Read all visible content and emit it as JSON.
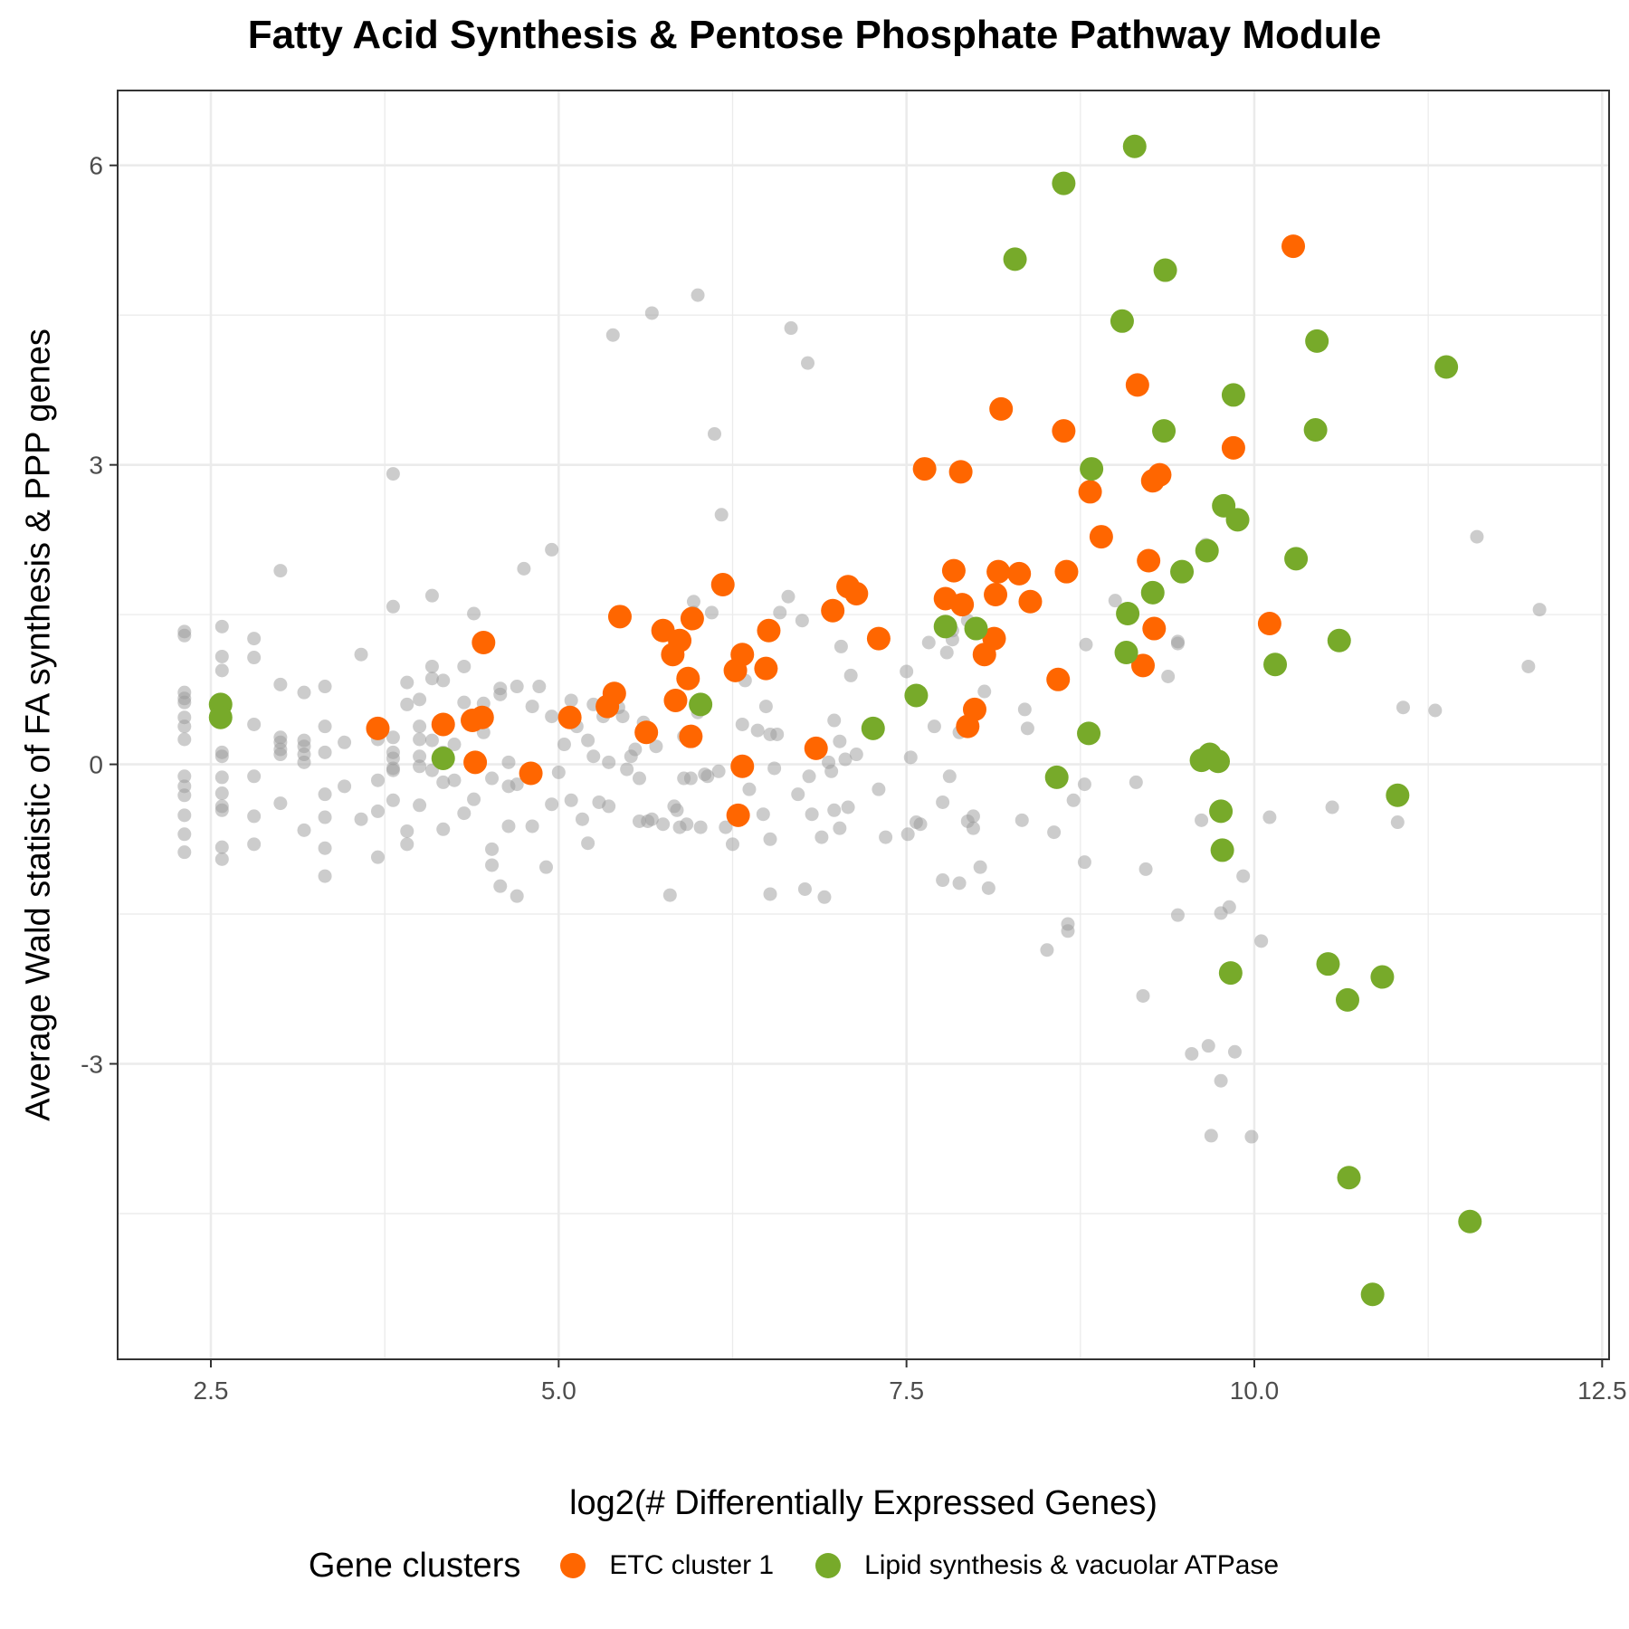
{
  "chart_data": {
    "type": "scatter",
    "title": "Fatty Acid Synthesis & Pentose Phosphate Pathway Module",
    "xlabel": "log2(# Differentially Expressed Genes)",
    "ylabel": "Average Wald statistic of FA synthesis & PPP genes",
    "xlim": [
      1.83,
      12.55
    ],
    "ylim": [
      -5.96,
      6.75
    ],
    "x_ticks": [
      2.5,
      5.0,
      7.5,
      10.0,
      12.5
    ],
    "x_tick_labels": [
      "2.5",
      "5.0",
      "7.5",
      "10.0",
      "12.5"
    ],
    "y_ticks": [
      -3,
      0,
      3,
      6
    ],
    "y_tick_labels": [
      "-3",
      "0",
      "3",
      "6"
    ],
    "grid": true,
    "legend": {
      "title": "Gene clusters",
      "position": "bottom",
      "entries": [
        "ETC cluster 1",
        "Lipid synthesis & vacuolar ATPase"
      ]
    },
    "colors": {
      "background_points": "#999999",
      "ETC cluster 1": "#FF6600",
      "Lipid synthesis & vacuolar ATPase": "#77AA2A",
      "grid": "#EBEBEB",
      "panel_border": "#333333"
    },
    "series": [
      {
        "name": "ETC cluster 1",
        "points": [
          [
            3.7,
            0.36
          ],
          [
            4.17,
            0.4
          ],
          [
            4.38,
            0.44
          ],
          [
            4.45,
            0.47
          ],
          [
            4.46,
            1.22
          ],
          [
            4.4,
            0.02
          ],
          [
            4.8,
            -0.09
          ],
          [
            5.08,
            0.47
          ],
          [
            5.35,
            0.58
          ],
          [
            5.4,
            0.71
          ],
          [
            5.44,
            1.48
          ],
          [
            5.63,
            0.32
          ],
          [
            5.75,
            1.34
          ],
          [
            5.82,
            1.1
          ],
          [
            5.87,
            1.24
          ],
          [
            5.84,
            0.64
          ],
          [
            5.93,
            0.86
          ],
          [
            5.96,
            1.46
          ],
          [
            5.95,
            0.28
          ],
          [
            6.18,
            1.8
          ],
          [
            6.27,
            0.94
          ],
          [
            6.32,
            1.1
          ],
          [
            6.32,
            -0.02
          ],
          [
            6.29,
            -0.51
          ],
          [
            6.49,
            0.96
          ],
          [
            6.51,
            1.34
          ],
          [
            6.85,
            0.16
          ],
          [
            6.97,
            1.54
          ],
          [
            7.08,
            1.78
          ],
          [
            7.14,
            1.71
          ],
          [
            7.3,
            1.26
          ],
          [
            7.63,
            2.96
          ],
          [
            7.78,
            1.66
          ],
          [
            7.84,
            1.94
          ],
          [
            7.9,
            1.6
          ],
          [
            7.89,
            2.93
          ],
          [
            7.94,
            0.38
          ],
          [
            7.99,
            0.55
          ],
          [
            8.06,
            1.1
          ],
          [
            8.13,
            1.26
          ],
          [
            8.14,
            1.7
          ],
          [
            8.16,
            1.93
          ],
          [
            8.18,
            3.56
          ],
          [
            8.31,
            1.91
          ],
          [
            8.39,
            1.63
          ],
          [
            8.59,
            0.85
          ],
          [
            8.63,
            3.34
          ],
          [
            8.65,
            1.93
          ],
          [
            8.82,
            2.73
          ],
          [
            8.9,
            2.28
          ],
          [
            9.16,
            3.8
          ],
          [
            9.2,
            0.99
          ],
          [
            9.24,
            2.04
          ],
          [
            9.27,
            2.84
          ],
          [
            9.28,
            1.36
          ],
          [
            9.32,
            2.9
          ],
          [
            9.85,
            3.17
          ],
          [
            10.11,
            1.41
          ],
          [
            10.28,
            5.19
          ]
        ]
      },
      {
        "name": "Lipid synthesis & vacuolar ATPase",
        "points": [
          [
            2.57,
            0.6
          ],
          [
            2.57,
            0.47
          ],
          [
            4.17,
            0.06
          ],
          [
            6.02,
            0.6
          ],
          [
            7.26,
            0.36
          ],
          [
            7.57,
            0.69
          ],
          [
            7.78,
            1.38
          ],
          [
            8.0,
            1.36
          ],
          [
            8.28,
            5.06
          ],
          [
            8.58,
            -0.13
          ],
          [
            8.63,
            5.82
          ],
          [
            8.81,
            0.31
          ],
          [
            8.83,
            2.96
          ],
          [
            9.05,
            4.44
          ],
          [
            9.08,
            1.12
          ],
          [
            9.09,
            1.51
          ],
          [
            9.14,
            6.19
          ],
          [
            9.27,
            1.72
          ],
          [
            9.35,
            3.34
          ],
          [
            9.36,
            4.95
          ],
          [
            9.48,
            1.93
          ],
          [
            9.62,
            0.04
          ],
          [
            9.66,
            2.14
          ],
          [
            9.68,
            0.1
          ],
          [
            9.74,
            0.03
          ],
          [
            9.76,
            -0.47
          ],
          [
            9.77,
            -0.86
          ],
          [
            9.78,
            2.59
          ],
          [
            9.83,
            -2.09
          ],
          [
            9.85,
            3.7
          ],
          [
            9.88,
            2.45
          ],
          [
            10.15,
            1.0
          ],
          [
            10.3,
            2.06
          ],
          [
            10.44,
            3.35
          ],
          [
            10.45,
            4.24
          ],
          [
            10.53,
            -2.0
          ],
          [
            10.61,
            1.24
          ],
          [
            10.67,
            -2.36
          ],
          [
            10.68,
            -4.14
          ],
          [
            10.85,
            -5.31
          ],
          [
            10.92,
            -2.13
          ],
          [
            11.03,
            -0.31
          ],
          [
            11.38,
            3.98
          ],
          [
            11.55,
            -4.58
          ]
        ]
      }
    ],
    "background_points": [
      [
        2.31,
        1.33
      ],
      [
        2.31,
        1.29
      ],
      [
        2.31,
        0.72
      ],
      [
        2.31,
        0.66
      ],
      [
        2.31,
        0.62
      ],
      [
        2.31,
        0.47
      ],
      [
        2.31,
        0.38
      ],
      [
        2.31,
        0.25
      ],
      [
        2.31,
        -0.12
      ],
      [
        2.31,
        -0.22
      ],
      [
        2.31,
        -0.31
      ],
      [
        2.31,
        -0.51
      ],
      [
        2.31,
        -0.7
      ],
      [
        2.31,
        -0.88
      ],
      [
        2.58,
        1.38
      ],
      [
        2.58,
        1.08
      ],
      [
        2.58,
        0.94
      ],
      [
        2.58,
        0.12
      ],
      [
        2.58,
        0.08
      ],
      [
        2.58,
        -0.13
      ],
      [
        2.58,
        -0.29
      ],
      [
        2.58,
        -0.42
      ],
      [
        2.58,
        -0.46
      ],
      [
        2.58,
        -0.83
      ],
      [
        2.58,
        -0.95
      ],
      [
        2.81,
        1.26
      ],
      [
        2.81,
        1.07
      ],
      [
        2.81,
        0.4
      ],
      [
        2.81,
        -0.12
      ],
      [
        2.81,
        -0.52
      ],
      [
        2.81,
        -0.8
      ],
      [
        3.0,
        1.94
      ],
      [
        3.0,
        0.8
      ],
      [
        3.0,
        0.27
      ],
      [
        3.0,
        0.22
      ],
      [
        3.0,
        0.15
      ],
      [
        3.0,
        0.1
      ],
      [
        3.0,
        -0.39
      ],
      [
        3.17,
        0.72
      ],
      [
        3.17,
        0.24
      ],
      [
        3.17,
        0.18
      ],
      [
        3.17,
        0.1
      ],
      [
        3.17,
        0.02
      ],
      [
        3.17,
        -0.66
      ],
      [
        3.32,
        0.78
      ],
      [
        3.32,
        0.38
      ],
      [
        3.32,
        0.12
      ],
      [
        3.32,
        -0.3
      ],
      [
        3.32,
        -0.53
      ],
      [
        3.32,
        -0.84
      ],
      [
        3.32,
        -1.12
      ],
      [
        3.46,
        0.22
      ],
      [
        3.46,
        -0.22
      ],
      [
        3.58,
        1.1
      ],
      [
        3.58,
        -0.55
      ],
      [
        3.7,
        0.25
      ],
      [
        3.7,
        -0.16
      ],
      [
        3.7,
        -0.47
      ],
      [
        3.7,
        -0.93
      ],
      [
        3.81,
        2.91
      ],
      [
        3.81,
        1.58
      ],
      [
        3.81,
        0.27
      ],
      [
        3.81,
        0.12
      ],
      [
        3.81,
        0.06
      ],
      [
        3.81,
        -0.04
      ],
      [
        3.81,
        -0.06
      ],
      [
        3.81,
        -0.36
      ],
      [
        3.91,
        0.82
      ],
      [
        3.91,
        0.6
      ],
      [
        3.91,
        -0.67
      ],
      [
        3.91,
        -0.8
      ],
      [
        4.0,
        0.65
      ],
      [
        4.0,
        0.38
      ],
      [
        4.0,
        0.25
      ],
      [
        4.0,
        0.08
      ],
      [
        4.0,
        -0.02
      ],
      [
        4.0,
        -0.41
      ],
      [
        4.09,
        1.69
      ],
      [
        4.09,
        0.98
      ],
      [
        4.09,
        0.86
      ],
      [
        4.09,
        0.24
      ],
      [
        4.09,
        -0.06
      ],
      [
        4.17,
        0.84
      ],
      [
        4.17,
        0.12
      ],
      [
        4.17,
        -0.18
      ],
      [
        4.17,
        -0.65
      ],
      [
        4.25,
        0.2
      ],
      [
        4.25,
        -0.16
      ],
      [
        4.32,
        0.98
      ],
      [
        4.32,
        0.62
      ],
      [
        4.32,
        -0.49
      ],
      [
        4.39,
        1.51
      ],
      [
        4.39,
        -0.35
      ],
      [
        4.46,
        0.61
      ],
      [
        4.46,
        0.32
      ],
      [
        4.52,
        -0.85
      ],
      [
        4.52,
        -1.01
      ],
      [
        4.52,
        -0.14
      ],
      [
        4.58,
        0.76
      ],
      [
        4.58,
        0.7
      ],
      [
        4.58,
        -1.22
      ],
      [
        4.64,
        -0.22
      ],
      [
        4.64,
        -0.62
      ],
      [
        4.64,
        0.02
      ],
      [
        4.7,
        0.78
      ],
      [
        4.7,
        -0.2
      ],
      [
        4.7,
        -1.32
      ],
      [
        4.75,
        1.96
      ],
      [
        4.81,
        0.58
      ],
      [
        4.81,
        -0.62
      ],
      [
        4.86,
        0.78
      ],
      [
        4.91,
        -1.03
      ],
      [
        4.95,
        2.15
      ],
      [
        4.95,
        0.48
      ],
      [
        4.95,
        -0.4
      ],
      [
        5.0,
        -0.08
      ],
      [
        5.04,
        0.2
      ],
      [
        5.09,
        0.64
      ],
      [
        5.09,
        -0.36
      ],
      [
        5.13,
        0.38
      ],
      [
        5.17,
        -0.55
      ],
      [
        5.21,
        0.24
      ],
      [
        5.21,
        -0.79
      ],
      [
        5.25,
        0.6
      ],
      [
        5.25,
        0.08
      ],
      [
        5.29,
        -0.38
      ],
      [
        5.32,
        0.48
      ],
      [
        5.36,
        -0.42
      ],
      [
        5.36,
        0.02
      ],
      [
        5.39,
        4.3
      ],
      [
        5.43,
        0.57
      ],
      [
        5.46,
        0.48
      ],
      [
        5.49,
        -0.05
      ],
      [
        5.52,
        0.08
      ],
      [
        5.55,
        0.15
      ],
      [
        5.58,
        -0.57
      ],
      [
        5.58,
        -0.14
      ],
      [
        5.61,
        0.42
      ],
      [
        5.64,
        -0.57
      ],
      [
        5.67,
        4.52
      ],
      [
        5.67,
        -0.55
      ],
      [
        5.7,
        0.18
      ],
      [
        5.75,
        -0.6
      ],
      [
        5.8,
        -1.31
      ],
      [
        5.83,
        -0.42
      ],
      [
        5.85,
        -0.46
      ],
      [
        5.87,
        -0.63
      ],
      [
        5.9,
        0.28
      ],
      [
        5.9,
        -0.14
      ],
      [
        5.92,
        -0.6
      ],
      [
        5.95,
        -0.14
      ],
      [
        5.97,
        1.52
      ],
      [
        5.97,
        1.63
      ],
      [
        6.0,
        4.7
      ],
      [
        6.0,
        0.52
      ],
      [
        6.02,
        -0.63
      ],
      [
        6.05,
        -0.1
      ],
      [
        6.07,
        -0.12
      ],
      [
        6.1,
        1.52
      ],
      [
        6.12,
        3.31
      ],
      [
        6.15,
        -0.07
      ],
      [
        6.17,
        2.5
      ],
      [
        6.2,
        -0.63
      ],
      [
        6.25,
        -0.8
      ],
      [
        6.29,
        1.12
      ],
      [
        6.32,
        0.4
      ],
      [
        6.34,
        0.84
      ],
      [
        6.37,
        -0.25
      ],
      [
        6.43,
        0.34
      ],
      [
        6.47,
        -0.5
      ],
      [
        6.49,
        0.58
      ],
      [
        6.52,
        0.3
      ],
      [
        6.52,
        -0.75
      ],
      [
        6.52,
        -1.3
      ],
      [
        6.55,
        -0.04
      ],
      [
        6.57,
        0.3
      ],
      [
        6.59,
        1.52
      ],
      [
        6.65,
        1.68
      ],
      [
        6.67,
        4.37
      ],
      [
        6.72,
        -0.3
      ],
      [
        6.75,
        1.44
      ],
      [
        6.77,
        -1.25
      ],
      [
        6.79,
        4.02
      ],
      [
        6.8,
        -0.12
      ],
      [
        6.82,
        -0.5
      ],
      [
        6.89,
        -0.73
      ],
      [
        6.91,
        -1.33
      ],
      [
        6.94,
        0.02
      ],
      [
        6.96,
        -0.07
      ],
      [
        6.98,
        0.44
      ],
      [
        6.98,
        -0.46
      ],
      [
        7.02,
        0.23
      ],
      [
        7.02,
        -0.64
      ],
      [
        7.03,
        1.18
      ],
      [
        7.06,
        0.05
      ],
      [
        7.08,
        -0.43
      ],
      [
        7.1,
        0.89
      ],
      [
        7.14,
        0.1
      ],
      [
        7.3,
        -0.25
      ],
      [
        7.35,
        -0.73
      ],
      [
        7.5,
        0.93
      ],
      [
        7.51,
        -0.7
      ],
      [
        7.53,
        0.07
      ],
      [
        7.57,
        -0.58
      ],
      [
        7.6,
        -0.6
      ],
      [
        7.66,
        1.22
      ],
      [
        7.7,
        0.38
      ],
      [
        7.76,
        -0.38
      ],
      [
        7.76,
        -1.16
      ],
      [
        7.79,
        1.12
      ],
      [
        7.81,
        -0.12
      ],
      [
        7.83,
        1.34
      ],
      [
        7.83,
        1.25
      ],
      [
        7.88,
        0.32
      ],
      [
        7.88,
        -1.19
      ],
      [
        7.94,
        -0.57
      ],
      [
        7.94,
        1.44
      ],
      [
        7.98,
        -0.52
      ],
      [
        7.98,
        -0.64
      ],
      [
        8.03,
        -1.03
      ],
      [
        8.06,
        0.73
      ],
      [
        8.09,
        -1.24
      ],
      [
        8.33,
        -0.56
      ],
      [
        8.35,
        0.55
      ],
      [
        8.37,
        0.36
      ],
      [
        8.51,
        -1.86
      ],
      [
        8.56,
        -0.68
      ],
      [
        8.66,
        -1.6
      ],
      [
        8.66,
        -1.67
      ],
      [
        8.7,
        -0.36
      ],
      [
        8.78,
        -0.2
      ],
      [
        8.78,
        -0.98
      ],
      [
        8.79,
        1.2
      ],
      [
        9.0,
        1.64
      ],
      [
        9.15,
        -0.18
      ],
      [
        9.2,
        -2.32
      ],
      [
        9.22,
        -1.05
      ],
      [
        9.38,
        0.88
      ],
      [
        9.45,
        1.23
      ],
      [
        9.45,
        1.21
      ],
      [
        9.45,
        -1.51
      ],
      [
        9.55,
        -2.9
      ],
      [
        9.62,
        -0.56
      ],
      [
        9.65,
        2.2
      ],
      [
        9.67,
        -2.82
      ],
      [
        9.69,
        -3.72
      ],
      [
        9.76,
        -3.17
      ],
      [
        9.76,
        -1.49
      ],
      [
        9.82,
        -1.43
      ],
      [
        9.86,
        -2.88
      ],
      [
        9.92,
        -1.12
      ],
      [
        9.98,
        -3.73
      ],
      [
        10.05,
        -1.77
      ],
      [
        10.11,
        -0.53
      ],
      [
        10.56,
        -0.43
      ],
      [
        11.03,
        -0.58
      ],
      [
        11.07,
        0.57
      ],
      [
        11.3,
        0.54
      ],
      [
        11.6,
        2.28
      ],
      [
        11.97,
        0.98
      ],
      [
        12.05,
        1.55
      ]
    ]
  }
}
